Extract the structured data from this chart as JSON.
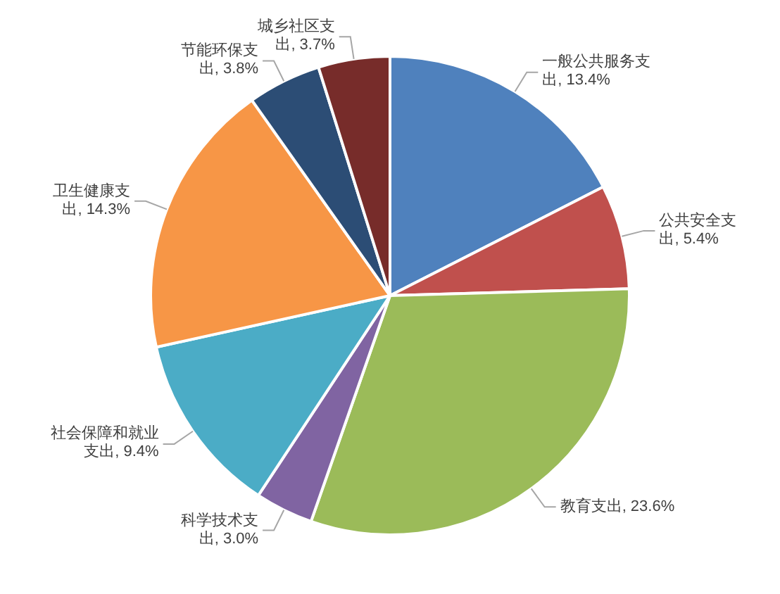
{
  "chart_data": {
    "type": "pie",
    "categories": [
      "一般公共服务支出",
      "公共安全支出",
      "教育支出",
      "科学技术支出",
      "社会保障和就业支出",
      "卫生健康支出",
      "节能环保支出",
      "城乡社区支出"
    ],
    "values": [
      13.4,
      5.4,
      23.6,
      3.0,
      9.4,
      14.3,
      3.8,
      3.7
    ],
    "value_labels": [
      "13.4%",
      "5.4%",
      "23.6%",
      "3.0%",
      "9.4%",
      "14.3%",
      "3.8%",
      "3.7%"
    ],
    "colors": [
      "#4f81bd",
      "#c0504d",
      "#9bbb59",
      "#8064a2",
      "#4bacc6",
      "#f79646",
      "#2c4d75",
      "#772c2a"
    ]
  }
}
